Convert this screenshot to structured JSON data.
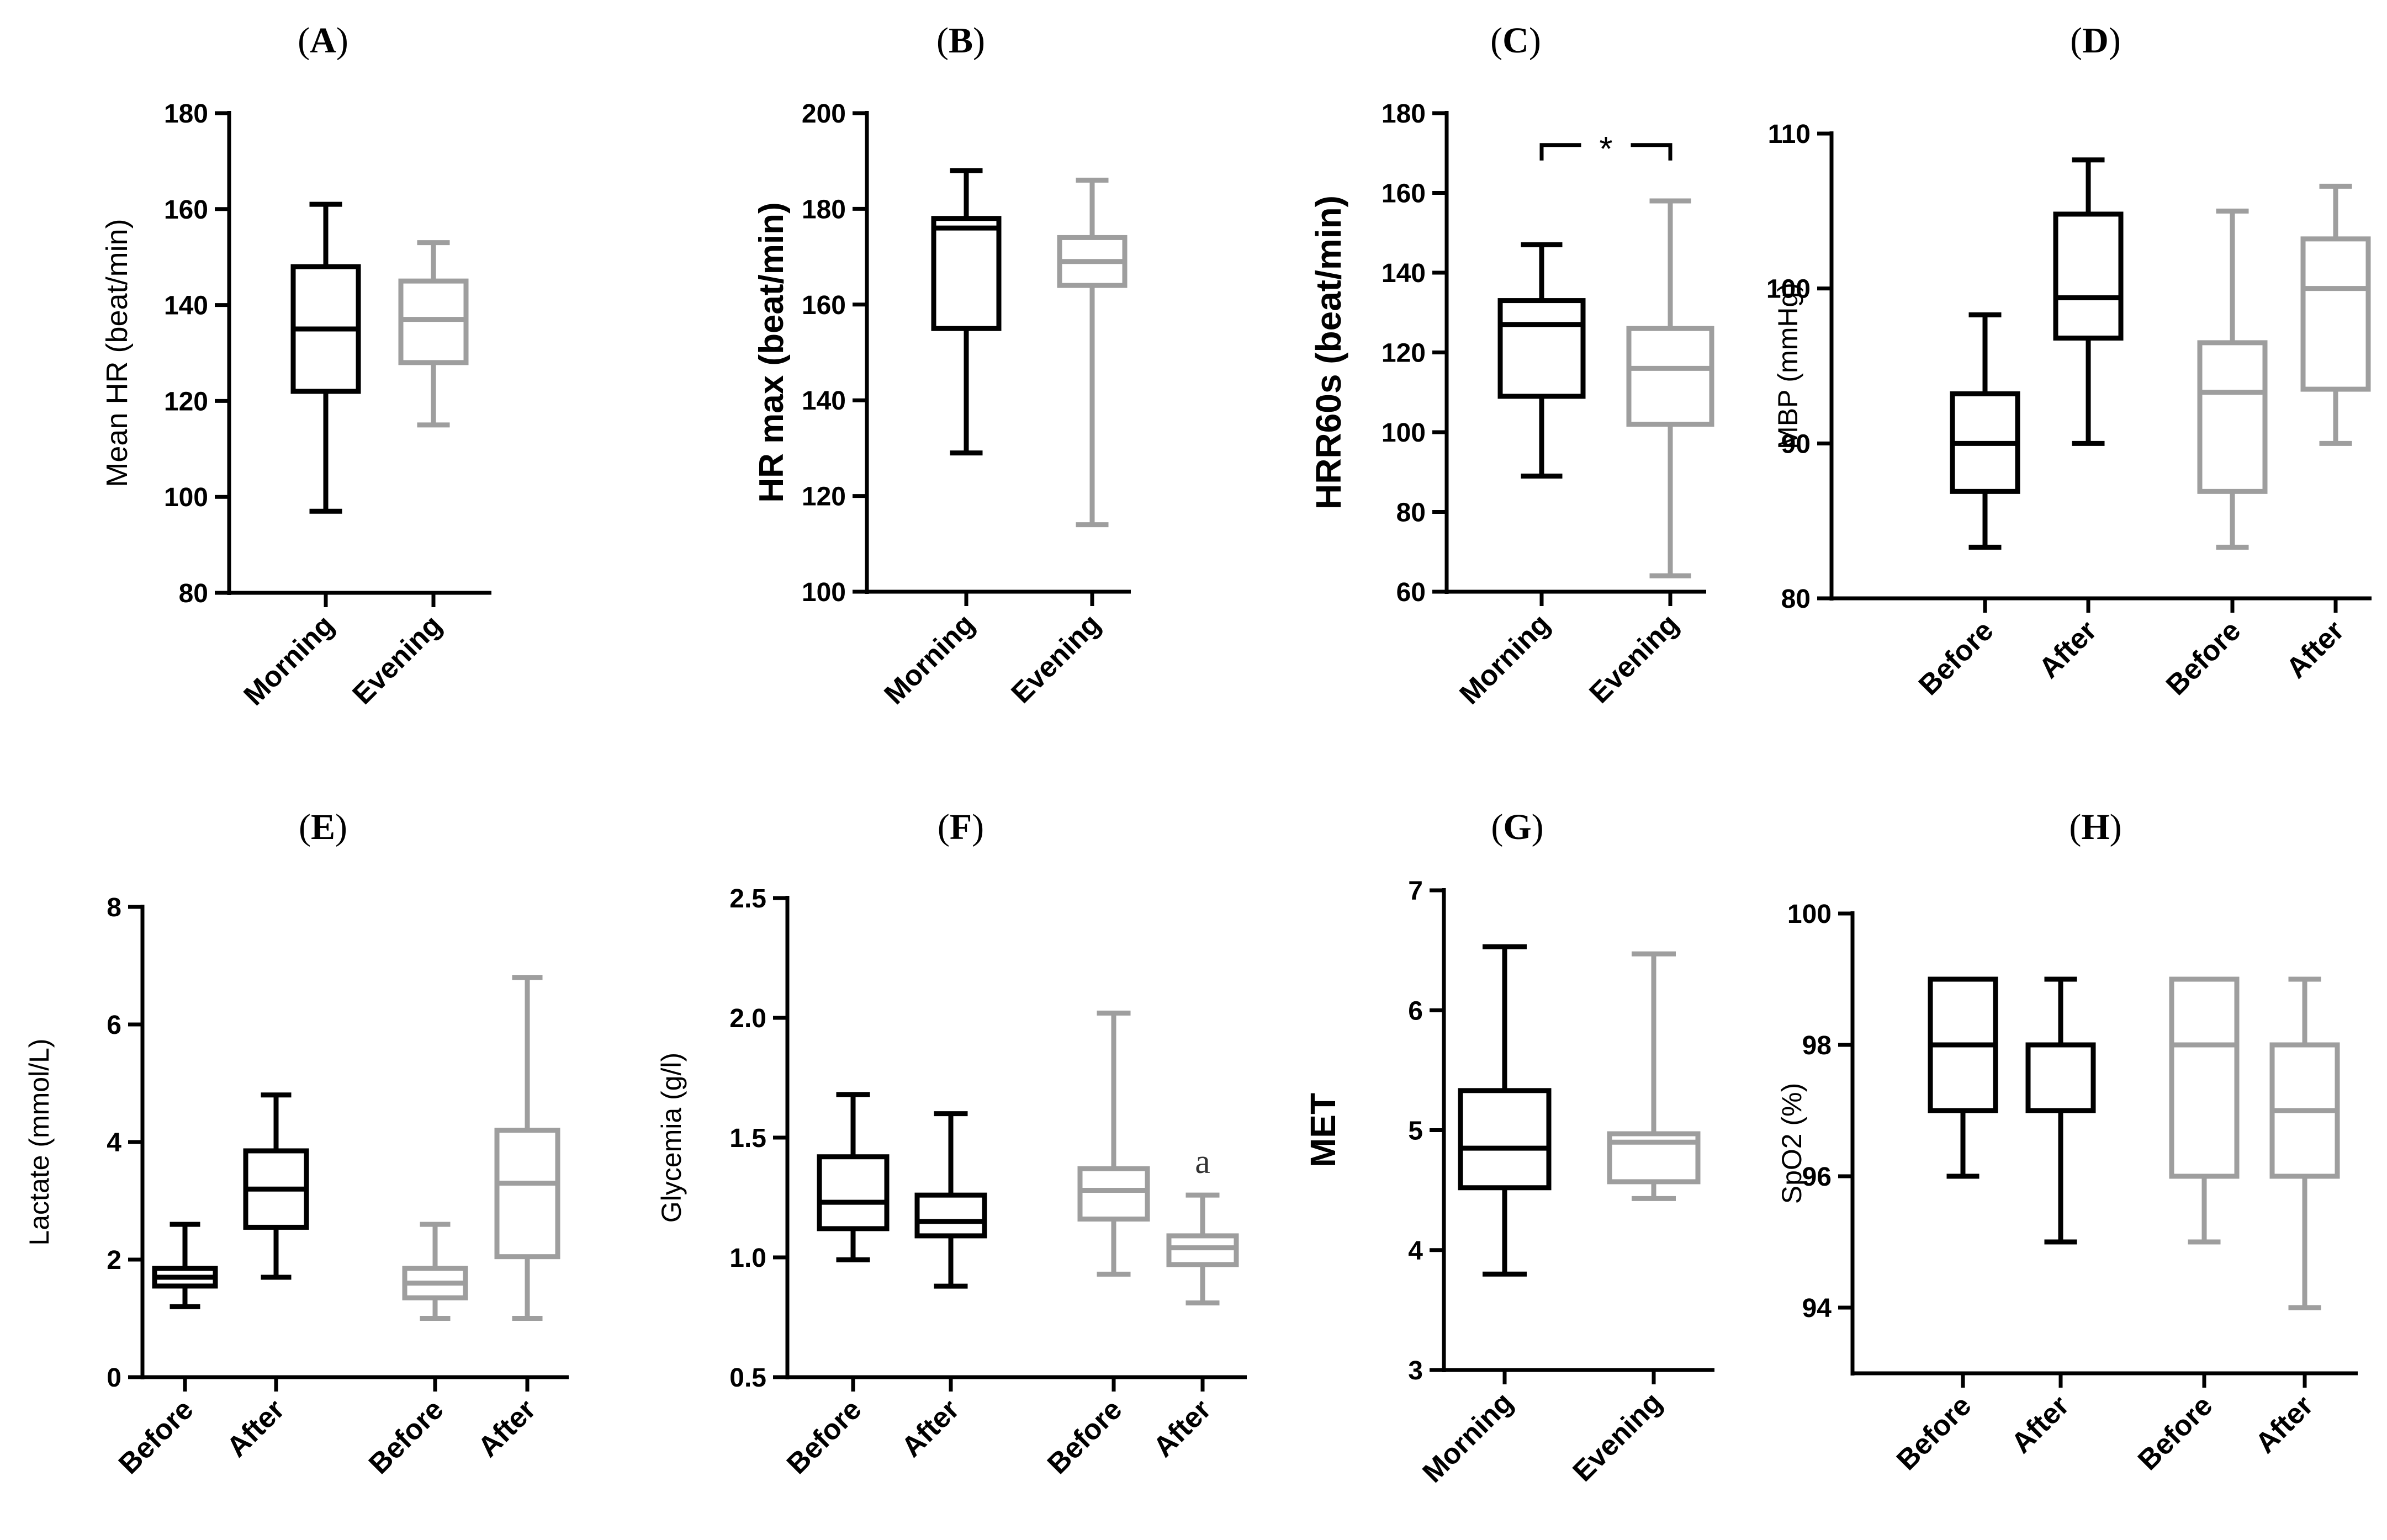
{
  "colors": {
    "morning": "#000000",
    "evening": "#9e9e9e",
    "axis": "#000000"
  },
  "chart_data": [
    {
      "id": "A",
      "panel_label": "(A)",
      "type": "box",
      "ylabel": "Mean HR (beat/min)",
      "ylim": [
        80,
        180
      ],
      "yticks": [
        80,
        100,
        120,
        140,
        160,
        180
      ],
      "categories": [
        "Morning",
        "Evening"
      ],
      "boxes": [
        {
          "category": "Morning",
          "group": "morning",
          "min": 97,
          "q1": 122,
          "median": 135,
          "q3": 148,
          "max": 161
        },
        {
          "category": "Evening",
          "group": "evening",
          "min": 115,
          "q1": 128,
          "median": 137,
          "q3": 145,
          "max": 153
        }
      ]
    },
    {
      "id": "B",
      "panel_label": "(B)",
      "type": "box",
      "ylabel": "HR max (beat/min)",
      "ylim": [
        100,
        200
      ],
      "yticks": [
        100,
        120,
        140,
        160,
        180,
        200
      ],
      "categories": [
        "Morning",
        "Evening"
      ],
      "boxes": [
        {
          "category": "Morning",
          "group": "morning",
          "min": 129,
          "q1": 155,
          "median": 176,
          "q3": 178,
          "max": 188
        },
        {
          "category": "Evening",
          "group": "evening",
          "min": 114,
          "q1": 164,
          "median": 169,
          "q3": 174,
          "max": 186
        }
      ]
    },
    {
      "id": "C",
      "panel_label": "(C)",
      "type": "box",
      "ylabel": "HRR60s (beat/min)",
      "ylim": [
        60,
        180
      ],
      "yticks": [
        60,
        80,
        100,
        120,
        140,
        160,
        180
      ],
      "categories": [
        "Morning",
        "Evening"
      ],
      "boxes": [
        {
          "category": "Morning",
          "group": "morning",
          "min": 89,
          "q1": 109,
          "median": 127,
          "q3": 133,
          "max": 147
        },
        {
          "category": "Evening",
          "group": "evening",
          "min": 64,
          "q1": 102,
          "median": 116,
          "q3": 126,
          "max": 158
        }
      ],
      "annotations": [
        {
          "text": "*",
          "type": "significance-bracket",
          "between": [
            "Morning",
            "Evening"
          ],
          "at": 172
        }
      ]
    },
    {
      "id": "D",
      "panel_label": "(D)",
      "type": "box",
      "ylabel": "MBP (mmHg)",
      "ylim": [
        80,
        110
      ],
      "yticks": [
        80,
        90,
        100,
        110
      ],
      "categories": [
        "Before",
        "After",
        "Before",
        "After"
      ],
      "boxes": [
        {
          "category": "Before",
          "group": "morning",
          "min": 83.3,
          "q1": 86.9,
          "median": 90,
          "q3": 93.2,
          "max": 98.3
        },
        {
          "category": "After",
          "group": "morning",
          "min": 90,
          "q1": 96.8,
          "median": 99.4,
          "q3": 104.8,
          "max": 108.3
        },
        {
          "category": "Before",
          "group": "evening",
          "min": 83.3,
          "q1": 86.9,
          "median": 93.3,
          "q3": 96.5,
          "max": 105
        },
        {
          "category": "After",
          "group": "evening",
          "min": 90,
          "q1": 93.5,
          "median": 100,
          "q3": 103.2,
          "max": 106.6
        }
      ]
    },
    {
      "id": "E",
      "panel_label": "(E)",
      "type": "box",
      "ylabel": "Lactate (mmol/L)",
      "ylim": [
        0,
        8
      ],
      "yticks": [
        0,
        2,
        4,
        6,
        8
      ],
      "categories": [
        "Before",
        "After",
        "Before",
        "After"
      ],
      "boxes": [
        {
          "category": "Before",
          "group": "morning",
          "min": 1.2,
          "q1": 1.55,
          "median": 1.7,
          "q3": 1.85,
          "max": 2.6
        },
        {
          "category": "After",
          "group": "morning",
          "min": 1.7,
          "q1": 2.55,
          "median": 3.2,
          "q3": 3.85,
          "max": 4.8
        },
        {
          "category": "Before",
          "group": "evening",
          "min": 1.0,
          "q1": 1.35,
          "median": 1.6,
          "q3": 1.85,
          "max": 2.6
        },
        {
          "category": "After",
          "group": "evening",
          "min": 1.0,
          "q1": 2.05,
          "median": 3.3,
          "q3": 4.2,
          "max": 6.8
        }
      ]
    },
    {
      "id": "F",
      "panel_label": "(F)",
      "type": "box",
      "ylabel": "Glycemia (g/l)",
      "ylim": [
        0.5,
        2.5
      ],
      "yticks": [
        "0.5",
        "1.0",
        "1.5",
        "2.0",
        "2.5"
      ],
      "categories": [
        "Before",
        "After",
        "Before",
        "After"
      ],
      "boxes": [
        {
          "category": "Before",
          "group": "morning",
          "min": 0.99,
          "q1": 1.12,
          "median": 1.23,
          "q3": 1.42,
          "max": 1.68
        },
        {
          "category": "After",
          "group": "morning",
          "min": 0.88,
          "q1": 1.09,
          "median": 1.15,
          "q3": 1.26,
          "max": 1.6
        },
        {
          "category": "Before",
          "group": "evening",
          "min": 0.93,
          "q1": 1.16,
          "median": 1.28,
          "q3": 1.37,
          "max": 2.02
        },
        {
          "category": "After",
          "group": "evening",
          "min": 0.81,
          "q1": 0.97,
          "median": 1.04,
          "q3": 1.09,
          "max": 1.26
        }
      ],
      "annotations": [
        {
          "text": "a",
          "type": "significance-letter",
          "box_index": 3
        }
      ]
    },
    {
      "id": "G",
      "panel_label": "(G)",
      "type": "box",
      "ylabel": "MET",
      "ylim": [
        3,
        7
      ],
      "yticks": [
        3,
        4,
        5,
        6,
        7
      ],
      "categories": [
        "Morning",
        "Evening"
      ],
      "boxes": [
        {
          "category": "Morning",
          "group": "morning",
          "min": 3.8,
          "q1": 4.52,
          "median": 4.85,
          "q3": 5.33,
          "max": 6.53
        },
        {
          "category": "Evening",
          "group": "evening",
          "min": 4.43,
          "q1": 4.57,
          "median": 4.9,
          "q3": 4.97,
          "max": 6.47
        }
      ]
    },
    {
      "id": "H",
      "panel_label": "(H)",
      "type": "box",
      "ylabel": "SpO2 (%)",
      "ylim": [
        93,
        100
      ],
      "yticks": [
        94,
        96,
        98,
        100
      ],
      "categories": [
        "Before",
        "After",
        "Before",
        "After"
      ],
      "boxes": [
        {
          "category": "Before",
          "group": "morning",
          "min": 96,
          "q1": 97,
          "median": 98,
          "q3": 99,
          "max": 99
        },
        {
          "category": "After",
          "group": "morning",
          "min": 95,
          "q1": 97,
          "median": 97,
          "q3": 98,
          "max": 99
        },
        {
          "category": "Before",
          "group": "evening",
          "min": 95,
          "q1": 96,
          "median": 98,
          "q3": 99,
          "max": 99
        },
        {
          "category": "After",
          "group": "evening",
          "min": 94,
          "q1": 96,
          "median": 97,
          "q3": 98,
          "max": 99
        }
      ]
    }
  ]
}
